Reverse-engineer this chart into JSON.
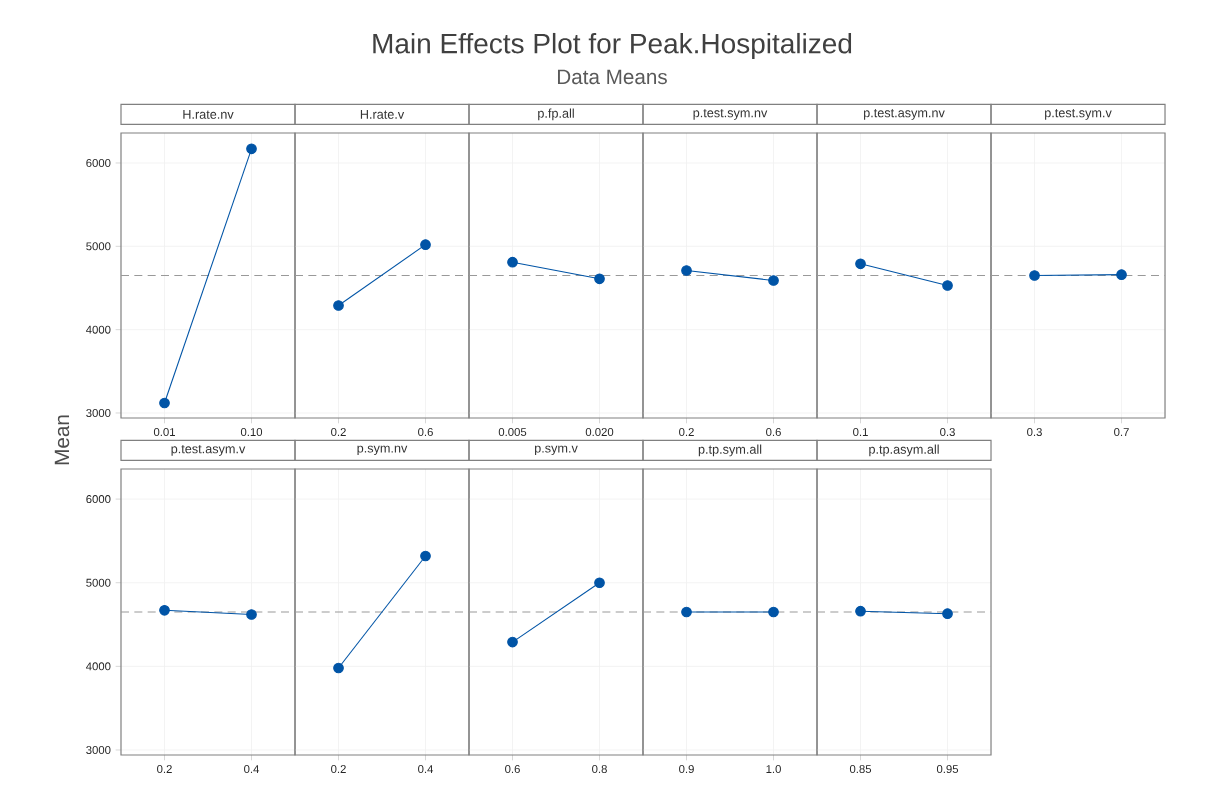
{
  "chart_data": [
    {
      "type": "other",
      "title": "Main Effects Plot for Peak.Hospitalized",
      "subtitle": "Data Means",
      "ylabel": "Mean"
    },
    {
      "type": "line",
      "title": "H.rate.nv",
      "categories": [
        "0.01",
        "0.10"
      ],
      "values": [
        3120,
        6170
      ],
      "color": "#0054a6",
      "marker": "circle",
      "ylim": [
        2940,
        6360
      ],
      "yticks": [
        3000,
        4000,
        5000,
        6000
      ],
      "grid": true,
      "ref_lines": [
        {
          "axis": "y",
          "value": 4650,
          "color": "#999999",
          "line_style": "dashed"
        }
      ]
    },
    {
      "type": "line",
      "title": "H.rate.v",
      "categories": [
        "0.2",
        "0.6"
      ],
      "values": [
        4290,
        5020
      ],
      "color": "#0054a6",
      "marker": "circle",
      "ylim": [
        2940,
        6360
      ],
      "yticks": [
        3000,
        4000,
        5000,
        6000
      ],
      "grid": true,
      "tick_labels": "x",
      "ref_lines": [
        {
          "axis": "y",
          "value": 4650,
          "color": "#999999",
          "line_style": "dashed"
        }
      ]
    },
    {
      "type": "line",
      "title": "p.fp.all",
      "categories": [
        "0.005",
        "0.020"
      ],
      "values": [
        4810,
        4610
      ],
      "color": "#0054a6",
      "marker": "circle",
      "ylim": [
        2940,
        6360
      ],
      "yticks": [
        3000,
        4000,
        5000,
        6000
      ],
      "grid": true,
      "tick_labels": "x",
      "ref_lines": [
        {
          "axis": "y",
          "value": 4650,
          "color": "#999999",
          "line_style": "dashed"
        }
      ]
    },
    {
      "type": "line",
      "title": "p.test.sym.nv",
      "categories": [
        "0.2",
        "0.6"
      ],
      "values": [
        4710,
        4590
      ],
      "color": "#0054a6",
      "marker": "circle",
      "ylim": [
        2940,
        6360
      ],
      "yticks": [
        3000,
        4000,
        5000,
        6000
      ],
      "grid": true,
      "tick_labels": "x",
      "ref_lines": [
        {
          "axis": "y",
          "value": 4650,
          "color": "#999999",
          "line_style": "dashed"
        }
      ]
    },
    {
      "type": "line",
      "title": "p.test.asym.nv",
      "categories": [
        "0.1",
        "0.3"
      ],
      "values": [
        4790,
        4530
      ],
      "color": "#0054a6",
      "marker": "circle",
      "ylim": [
        2940,
        6360
      ],
      "yticks": [
        3000,
        4000,
        5000,
        6000
      ],
      "grid": true,
      "tick_labels": "x",
      "ref_lines": [
        {
          "axis": "y",
          "value": 4650,
          "color": "#999999",
          "line_style": "dashed"
        }
      ]
    },
    {
      "type": "line",
      "title": "p.test.sym.v",
      "categories": [
        "0.3",
        "0.7"
      ],
      "values": [
        4650,
        4660
      ],
      "color": "#0054a6",
      "marker": "circle",
      "ylim": [
        2940,
        6360
      ],
      "yticks": [
        3000,
        4000,
        5000,
        6000
      ],
      "grid": true,
      "tick_labels": "x",
      "ref_lines": [
        {
          "axis": "y",
          "value": 4650,
          "color": "#999999",
          "line_style": "dashed"
        }
      ]
    },
    {
      "type": "line",
      "title": "p.test.asym.v",
      "categories": [
        "0.2",
        "0.4"
      ],
      "values": [
        4670,
        4620
      ],
      "color": "#0054a6",
      "marker": "circle",
      "ylim": [
        2940,
        6360
      ],
      "yticks": [
        3000,
        4000,
        5000,
        6000
      ],
      "grid": true,
      "ref_lines": [
        {
          "axis": "y",
          "value": 4650,
          "color": "#999999",
          "line_style": "dashed"
        }
      ]
    },
    {
      "type": "line",
      "title": "p.sym.nv",
      "categories": [
        "0.2",
        "0.4"
      ],
      "values": [
        3980,
        5320
      ],
      "color": "#0054a6",
      "marker": "circle",
      "ylim": [
        2940,
        6360
      ],
      "yticks": [
        3000,
        4000,
        5000,
        6000
      ],
      "grid": true,
      "tick_labels": "x",
      "ref_lines": [
        {
          "axis": "y",
          "value": 4650,
          "color": "#999999",
          "line_style": "dashed"
        }
      ]
    },
    {
      "type": "line",
      "title": "p.sym.v",
      "categories": [
        "0.6",
        "0.8"
      ],
      "values": [
        4290,
        5000
      ],
      "color": "#0054a6",
      "marker": "circle",
      "ylim": [
        2940,
        6360
      ],
      "yticks": [
        3000,
        4000,
        5000,
        6000
      ],
      "grid": true,
      "tick_labels": "x",
      "ref_lines": [
        {
          "axis": "y",
          "value": 4650,
          "color": "#999999",
          "line_style": "dashed"
        }
      ]
    },
    {
      "type": "line",
      "title": "p.tp.sym.all",
      "categories": [
        "0.9",
        "1.0"
      ],
      "values": [
        4650,
        4650
      ],
      "color": "#0054a6",
      "marker": "circle",
      "ylim": [
        2940,
        6360
      ],
      "yticks": [
        3000,
        4000,
        5000,
        6000
      ],
      "grid": true,
      "tick_labels": "x",
      "ref_lines": [
        {
          "axis": "y",
          "value": 4650,
          "color": "#999999",
          "line_style": "dashed"
        }
      ]
    },
    {
      "type": "line",
      "title": "p.tp.asym.all",
      "categories": [
        "0.85",
        "0.95"
      ],
      "values": [
        4660,
        4630
      ],
      "color": "#0054a6",
      "marker": "circle",
      "ylim": [
        2940,
        6360
      ],
      "yticks": [
        3000,
        4000,
        5000,
        6000
      ],
      "grid": true,
      "tick_labels": "x",
      "ref_lines": [
        {
          "axis": "y",
          "value": 4650,
          "color": "#999999",
          "line_style": "dashed"
        }
      ]
    }
  ]
}
